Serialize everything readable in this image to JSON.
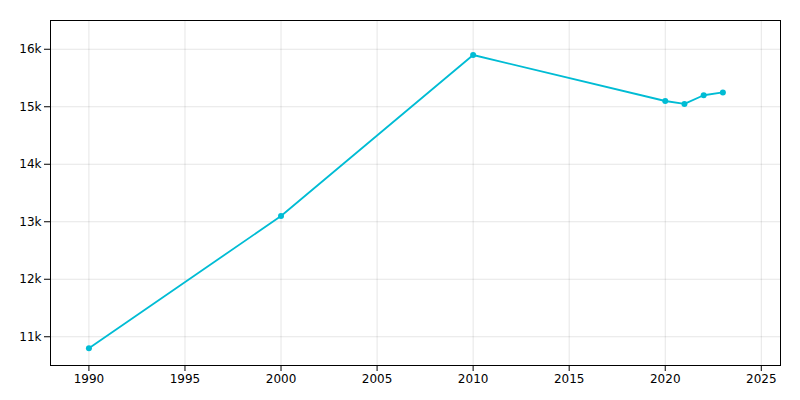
{
  "chart_data": {
    "type": "line",
    "x": [
      1990,
      2000,
      2010,
      2020,
      2021,
      2022,
      2023
    ],
    "values": [
      10800,
      13100,
      15900,
      15100,
      15050,
      15200,
      15250
    ],
    "color": "#00BCD4",
    "marker": "o",
    "xlim": [
      1988,
      2026
    ],
    "ylim": [
      10500,
      16500
    ],
    "xticks": [
      1990,
      1995,
      2000,
      2005,
      2010,
      2015,
      2020,
      2025
    ],
    "yticks": [
      {
        "value": 11000,
        "label": "11k"
      },
      {
        "value": 12000,
        "label": "12k"
      },
      {
        "value": 13000,
        "label": "13k"
      },
      {
        "value": 14000,
        "label": "14k"
      },
      {
        "value": 15000,
        "label": "15k"
      },
      {
        "value": 16000,
        "label": "16k"
      }
    ],
    "grid": true
  }
}
